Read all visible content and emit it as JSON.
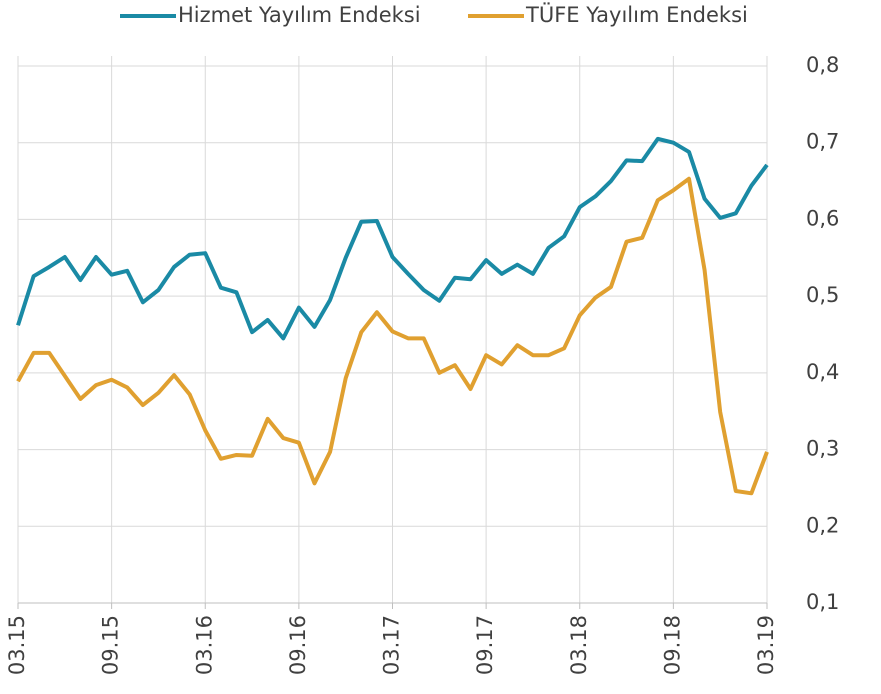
{
  "chart_data": {
    "type": "line",
    "categories": [
      "03.15",
      null,
      null,
      null,
      null,
      null,
      "09.15",
      null,
      null,
      null,
      null,
      null,
      "03.16",
      null,
      null,
      null,
      null,
      null,
      "09.16",
      null,
      null,
      null,
      null,
      null,
      "03.17",
      null,
      null,
      null,
      null,
      null,
      "09.17",
      null,
      null,
      null,
      null,
      null,
      "03.18",
      null,
      null,
      null,
      null,
      null,
      "09.18",
      null,
      null,
      null,
      null,
      null,
      "03.19"
    ],
    "series": [
      {
        "name": "Hizmet Yayılım Endeksi",
        "color": "#1a8aa5",
        "values": [
          0.462,
          0.526,
          0.538,
          0.551,
          0.521,
          0.551,
          0.528,
          0.533,
          0.492,
          0.508,
          0.538,
          0.554,
          0.556,
          0.511,
          0.505,
          0.453,
          0.469,
          0.445,
          0.485,
          0.46,
          0.495,
          0.55,
          0.597,
          0.598,
          0.551,
          0.529,
          0.508,
          0.494,
          0.524,
          0.522,
          0.547,
          0.529,
          0.541,
          0.529,
          0.563,
          0.578,
          0.616,
          0.63,
          0.65,
          0.677,
          0.676,
          0.705,
          0.7,
          0.688,
          0.627,
          0.602,
          0.608,
          0.644,
          0.671
        ]
      },
      {
        "name": "TÜFE Yayılım Endeksi",
        "color": "#e0a030",
        "values": [
          0.389,
          0.426,
          0.426,
          0.396,
          0.366,
          0.384,
          0.391,
          0.381,
          0.358,
          0.374,
          0.397,
          0.372,
          0.325,
          0.288,
          0.293,
          0.292,
          0.34,
          0.315,
          0.309,
          0.256,
          0.297,
          0.393,
          0.453,
          0.479,
          0.454,
          0.445,
          0.445,
          0.4,
          0.41,
          0.379,
          0.423,
          0.411,
          0.436,
          0.423,
          0.423,
          0.432,
          0.475,
          0.498,
          0.512,
          0.571,
          0.576,
          0.625,
          0.638,
          0.653,
          0.534,
          0.349,
          0.246,
          0.243,
          0.297
        ]
      }
    ],
    "ylim": [
      0.1,
      0.8
    ],
    "yticks": [
      {
        "value": 0.1,
        "label": "0,1"
      },
      {
        "value": 0.2,
        "label": "0,2"
      },
      {
        "value": 0.3,
        "label": "0,3"
      },
      {
        "value": 0.4,
        "label": "0,4"
      },
      {
        "value": 0.5,
        "label": "0,5"
      },
      {
        "value": 0.6,
        "label": "0,6"
      },
      {
        "value": 0.7,
        "label": "0,7"
      },
      {
        "value": 0.8,
        "label": "0,8"
      }
    ],
    "grid": true,
    "legend": "top"
  }
}
